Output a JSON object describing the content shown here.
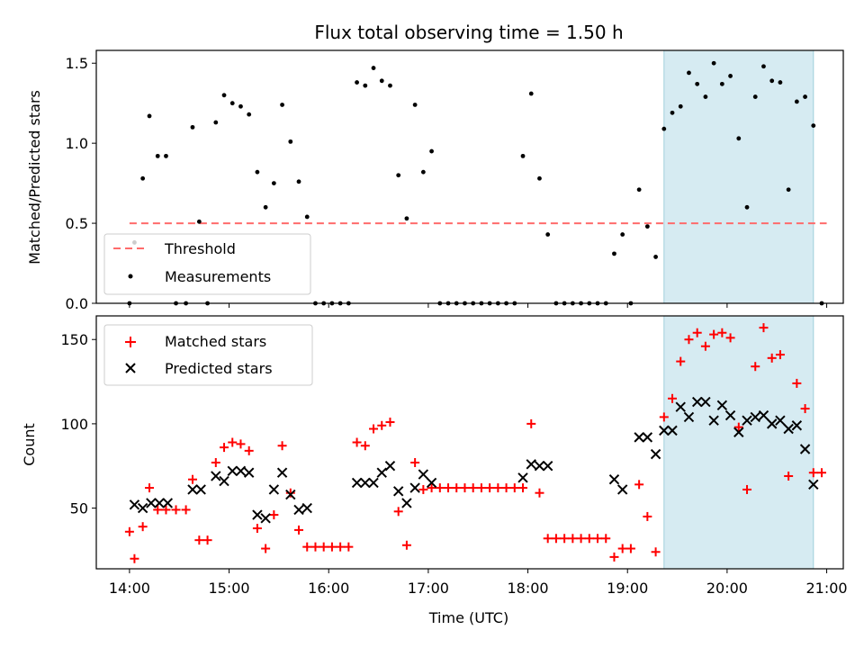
{
  "chart_data": [
    {
      "type": "scatter",
      "title": "Flux total observing time = 1.50 h",
      "xlabel": "",
      "ylabel": "Matched/Predicted stars",
      "xlim": [
        "13:40",
        "21:10"
      ],
      "ylim": [
        0,
        1.58
      ],
      "yticks": [
        0.0,
        0.5,
        1.0,
        1.5
      ],
      "ytick_labels": [
        "0.0",
        "0.5",
        "1.0",
        "1.5"
      ],
      "legend_position": "lower-left",
      "highlight_span": {
        "start": "19:22",
        "end": "20:52",
        "color": "#add8e6"
      },
      "threshold": {
        "name": "Threshold",
        "value": 0.5,
        "x_range": [
          "14:00",
          "21:00"
        ],
        "color": "#ff6b6b",
        "style": "dashed"
      },
      "series": [
        {
          "name": "Measurements",
          "color": "#000000",
          "marker": "dot",
          "points": [
            [
              "14:00",
              0.0
            ],
            [
              "14:03",
              0.38
            ],
            [
              "14:08",
              0.78
            ],
            [
              "14:12",
              1.17
            ],
            [
              "14:17",
              0.92
            ],
            [
              "14:22",
              0.92
            ],
            [
              "14:28",
              0.0
            ],
            [
              "14:34",
              0.0
            ],
            [
              "14:38",
              1.1
            ],
            [
              "14:42",
              0.51
            ],
            [
              "14:47",
              0.0
            ],
            [
              "14:52",
              1.13
            ],
            [
              "14:57",
              1.3
            ],
            [
              "15:02",
              1.25
            ],
            [
              "15:07",
              1.23
            ],
            [
              "15:12",
              1.18
            ],
            [
              "15:17",
              0.82
            ],
            [
              "15:22",
              0.6
            ],
            [
              "15:27",
              0.75
            ],
            [
              "15:32",
              1.24
            ],
            [
              "15:37",
              1.01
            ],
            [
              "15:42",
              0.76
            ],
            [
              "15:47",
              0.54
            ],
            [
              "15:52",
              0.0
            ],
            [
              "15:57",
              0.0
            ],
            [
              "16:02",
              0.0
            ],
            [
              "16:07",
              0.0
            ],
            [
              "16:12",
              0.0
            ],
            [
              "16:17",
              1.38
            ],
            [
              "16:22",
              1.36
            ],
            [
              "16:27",
              1.47
            ],
            [
              "16:32",
              1.39
            ],
            [
              "16:37",
              1.36
            ],
            [
              "16:42",
              0.8
            ],
            [
              "16:47",
              0.53
            ],
            [
              "16:52",
              1.24
            ],
            [
              "16:57",
              0.82
            ],
            [
              "17:02",
              0.95
            ],
            [
              "17:07",
              0.0
            ],
            [
              "17:12",
              0.0
            ],
            [
              "17:17",
              0.0
            ],
            [
              "17:22",
              0.0
            ],
            [
              "17:27",
              0.0
            ],
            [
              "17:32",
              0.0
            ],
            [
              "17:37",
              0.0
            ],
            [
              "17:42",
              0.0
            ],
            [
              "17:47",
              0.0
            ],
            [
              "17:52",
              0.0
            ],
            [
              "17:57",
              0.92
            ],
            [
              "18:02",
              1.31
            ],
            [
              "18:07",
              0.78
            ],
            [
              "18:12",
              0.43
            ],
            [
              "18:17",
              0.0
            ],
            [
              "18:22",
              0.0
            ],
            [
              "18:27",
              0.0
            ],
            [
              "18:32",
              0.0
            ],
            [
              "18:37",
              0.0
            ],
            [
              "18:42",
              0.0
            ],
            [
              "18:47",
              0.0
            ],
            [
              "18:52",
              0.31
            ],
            [
              "18:57",
              0.43
            ],
            [
              "19:02",
              0.0
            ],
            [
              "19:07",
              0.71
            ],
            [
              "19:12",
              0.48
            ],
            [
              "19:17",
              0.29
            ],
            [
              "19:22",
              1.09
            ],
            [
              "19:27",
              1.19
            ],
            [
              "19:32",
              1.23
            ],
            [
              "19:37",
              1.44
            ],
            [
              "19:42",
              1.37
            ],
            [
              "19:47",
              1.29
            ],
            [
              "19:52",
              1.5
            ],
            [
              "19:57",
              1.37
            ],
            [
              "20:02",
              1.42
            ],
            [
              "20:07",
              1.03
            ],
            [
              "20:12",
              0.6
            ],
            [
              "20:17",
              1.29
            ],
            [
              "20:22",
              1.48
            ],
            [
              "20:27",
              1.39
            ],
            [
              "20:32",
              1.38
            ],
            [
              "20:37",
              0.71
            ],
            [
              "20:42",
              1.26
            ],
            [
              "20:47",
              1.29
            ],
            [
              "20:52",
              1.11
            ],
            [
              "20:57",
              0.0
            ]
          ]
        }
      ]
    },
    {
      "type": "scatter",
      "title": "",
      "xlabel": "Time (UTC)",
      "ylabel": "Count",
      "xlim": [
        "13:40",
        "21:10"
      ],
      "ylim": [
        14,
        164
      ],
      "yticks": [
        50,
        100,
        150
      ],
      "ytick_labels": [
        "50",
        "100",
        "150"
      ],
      "xticks": [
        "14:00",
        "15:00",
        "16:00",
        "17:00",
        "18:00",
        "19:00",
        "20:00",
        "21:00"
      ],
      "xtick_labels": [
        "14:00",
        "15:00",
        "16:00",
        "17:00",
        "18:00",
        "19:00",
        "20:00",
        "21:00"
      ],
      "legend_position": "upper-left",
      "highlight_span": {
        "start": "19:22",
        "end": "20:52",
        "color": "#add8e6"
      },
      "series": [
        {
          "name": "Matched stars",
          "color": "#ff0000",
          "marker": "plus",
          "points": [
            [
              "14:00",
              36
            ],
            [
              "14:03",
              20
            ],
            [
              "14:08",
              39
            ],
            [
              "14:12",
              62
            ],
            [
              "14:17",
              49
            ],
            [
              "14:22",
              49
            ],
            [
              "14:28",
              49
            ],
            [
              "14:34",
              49
            ],
            [
              "14:38",
              67
            ],
            [
              "14:42",
              31
            ],
            [
              "14:47",
              31
            ],
            [
              "14:52",
              77
            ],
            [
              "14:57",
              86
            ],
            [
              "15:02",
              89
            ],
            [
              "15:07",
              88
            ],
            [
              "15:12",
              84
            ],
            [
              "15:17",
              38
            ],
            [
              "15:22",
              26
            ],
            [
              "15:27",
              46
            ],
            [
              "15:32",
              87
            ],
            [
              "15:37",
              59
            ],
            [
              "15:42",
              37
            ],
            [
              "15:47",
              27
            ],
            [
              "15:52",
              27
            ],
            [
              "15:57",
              27
            ],
            [
              "16:02",
              27
            ],
            [
              "16:07",
              27
            ],
            [
              "16:12",
              27
            ],
            [
              "16:17",
              89
            ],
            [
              "16:22",
              87
            ],
            [
              "16:27",
              97
            ],
            [
              "16:32",
              99
            ],
            [
              "16:37",
              101
            ],
            [
              "16:42",
              48
            ],
            [
              "16:47",
              28
            ],
            [
              "16:52",
              77
            ],
            [
              "16:57",
              61
            ],
            [
              "17:02",
              62
            ],
            [
              "17:07",
              62
            ],
            [
              "17:12",
              62
            ],
            [
              "17:17",
              62
            ],
            [
              "17:22",
              62
            ],
            [
              "17:27",
              62
            ],
            [
              "17:32",
              62
            ],
            [
              "17:37",
              62
            ],
            [
              "17:42",
              62
            ],
            [
              "17:47",
              62
            ],
            [
              "17:52",
              62
            ],
            [
              "17:57",
              62
            ],
            [
              "18:02",
              100
            ],
            [
              "18:07",
              59
            ],
            [
              "18:12",
              32
            ],
            [
              "18:17",
              32
            ],
            [
              "18:22",
              32
            ],
            [
              "18:27",
              32
            ],
            [
              "18:32",
              32
            ],
            [
              "18:37",
              32
            ],
            [
              "18:42",
              32
            ],
            [
              "18:47",
              32
            ],
            [
              "18:52",
              21
            ],
            [
              "18:57",
              26
            ],
            [
              "19:02",
              26
            ],
            [
              "19:07",
              64
            ],
            [
              "19:12",
              45
            ],
            [
              "19:17",
              24
            ],
            [
              "19:22",
              104
            ],
            [
              "19:27",
              115
            ],
            [
              "19:32",
              137
            ],
            [
              "19:37",
              150
            ],
            [
              "19:42",
              154
            ],
            [
              "19:47",
              146
            ],
            [
              "19:52",
              153
            ],
            [
              "19:57",
              154
            ],
            [
              "20:02",
              151
            ],
            [
              "20:07",
              98
            ],
            [
              "20:12",
              61
            ],
            [
              "20:17",
              134
            ],
            [
              "20:22",
              157
            ],
            [
              "20:27",
              139
            ],
            [
              "20:32",
              141
            ],
            [
              "20:37",
              69
            ],
            [
              "20:42",
              124
            ],
            [
              "20:47",
              109
            ],
            [
              "20:52",
              71
            ],
            [
              "20:57",
              71
            ]
          ]
        },
        {
          "name": "Predicted stars",
          "color": "#000000",
          "marker": "x",
          "points": [
            [
              "14:03",
              52
            ],
            [
              "14:08",
              50
            ],
            [
              "14:13",
              53
            ],
            [
              "14:18",
              53
            ],
            [
              "14:23",
              53
            ],
            [
              "14:38",
              61
            ],
            [
              "14:43",
              61
            ],
            [
              "14:52",
              69
            ],
            [
              "14:57",
              66
            ],
            [
              "15:02",
              72
            ],
            [
              "15:07",
              72
            ],
            [
              "15:12",
              71
            ],
            [
              "15:17",
              46
            ],
            [
              "15:22",
              44
            ],
            [
              "15:27",
              61
            ],
            [
              "15:32",
              71
            ],
            [
              "15:37",
              58
            ],
            [
              "15:42",
              49
            ],
            [
              "15:47",
              50
            ],
            [
              "16:17",
              65
            ],
            [
              "16:22",
              65
            ],
            [
              "16:27",
              65
            ],
            [
              "16:32",
              71
            ],
            [
              "16:37",
              75
            ],
            [
              "16:42",
              60
            ],
            [
              "16:47",
              53
            ],
            [
              "16:52",
              62
            ],
            [
              "16:57",
              70
            ],
            [
              "17:02",
              65
            ],
            [
              "17:57",
              68
            ],
            [
              "18:02",
              76
            ],
            [
              "18:07",
              75
            ],
            [
              "18:12",
              75
            ],
            [
              "18:52",
              67
            ],
            [
              "18:57",
              61
            ],
            [
              "19:07",
              92
            ],
            [
              "19:12",
              92
            ],
            [
              "19:17",
              82
            ],
            [
              "19:22",
              96
            ],
            [
              "19:27",
              96
            ],
            [
              "19:32",
              110
            ],
            [
              "19:37",
              104
            ],
            [
              "19:42",
              113
            ],
            [
              "19:47",
              113
            ],
            [
              "19:52",
              102
            ],
            [
              "19:57",
              111
            ],
            [
              "20:02",
              105
            ],
            [
              "20:07",
              95
            ],
            [
              "20:12",
              102
            ],
            [
              "20:17",
              104
            ],
            [
              "20:22",
              105
            ],
            [
              "20:27",
              100
            ],
            [
              "20:32",
              102
            ],
            [
              "20:37",
              97
            ],
            [
              "20:42",
              99
            ],
            [
              "20:47",
              85
            ],
            [
              "20:52",
              64
            ]
          ]
        }
      ]
    }
  ]
}
